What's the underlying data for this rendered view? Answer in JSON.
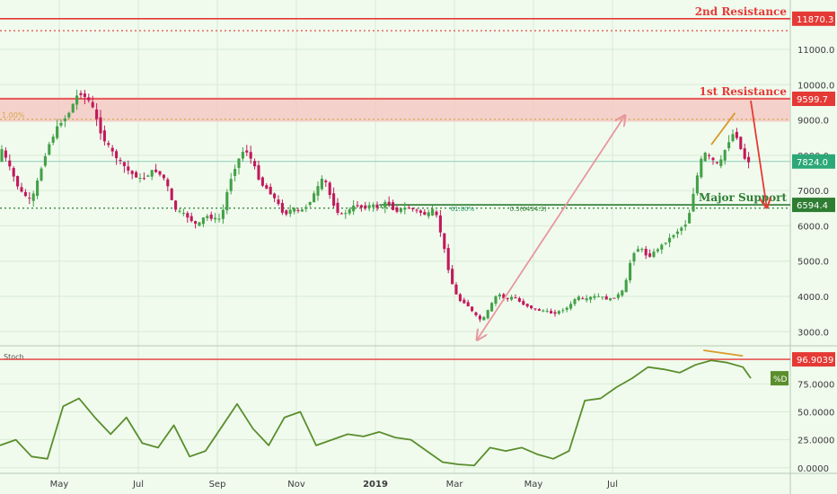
{
  "chart_data": [
    {
      "type": "candlestick",
      "title": "",
      "x_ticks": [
        "May",
        "Jul",
        "Sep",
        "Nov",
        "2019",
        "Mar",
        "May",
        "Jul"
      ],
      "y_ticks": [
        "3000.0",
        "4000.0",
        "5000.0",
        "6000.0",
        "7000.0",
        "8000.0",
        "9000.0",
        "10000.0",
        "11000.0"
      ],
      "ylim": [
        2600,
        12400
      ],
      "grid": true,
      "colors": {
        "up": "#43a047",
        "down": "#c2185b",
        "resistance": "#e53935",
        "support": "#2e7d32",
        "arrow_up": "#e8979e"
      },
      "levels": [
        {
          "name": "2nd Resistance",
          "value": 11870.3,
          "label": "11870.3",
          "color": "#e53935"
        },
        {
          "name": "1st Resistance",
          "value": 9599.7,
          "label": "9599.7",
          "color": "#e53935"
        },
        {
          "name": "Major Support",
          "value": 6594.4,
          "label": "6594.4",
          "color": "#2e7d32"
        }
      ],
      "dotted_levels": [
        11530,
        9020,
        6500
      ],
      "resistance_zone": [
        8950,
        9640
      ],
      "last_price": {
        "value": 7824.0,
        "label": "7824.0"
      },
      "fib_labels": {
        "left": "1.00%",
        "fib618": "61.80%",
        "fib05": "0.5(6494.3)"
      },
      "price_path": [
        [
          0,
          8300
        ],
        [
          5,
          7000
        ],
        [
          8,
          6700
        ],
        [
          12,
          8200
        ],
        [
          15,
          8900
        ],
        [
          17,
          9100
        ],
        [
          20,
          9800
        ],
        [
          23,
          9500
        ],
        [
          26,
          8500
        ],
        [
          29,
          8000
        ],
        [
          33,
          7500
        ],
        [
          36,
          7300
        ],
        [
          39,
          7600
        ],
        [
          42,
          7300
        ],
        [
          44,
          6500
        ],
        [
          47,
          6300
        ],
        [
          50,
          6000
        ],
        [
          52,
          6300
        ],
        [
          54,
          6200
        ],
        [
          56,
          6200
        ],
        [
          58,
          7200
        ],
        [
          60,
          7800
        ],
        [
          62,
          8200
        ],
        [
          64,
          7800
        ],
        [
          66,
          7200
        ],
        [
          68,
          7000
        ],
        [
          70,
          6700
        ],
        [
          72,
          6300
        ],
        [
          74,
          6500
        ],
        [
          76,
          6400
        ],
        [
          78,
          6600
        ],
        [
          80,
          7000
        ],
        [
          82,
          7400
        ],
        [
          84,
          6700
        ],
        [
          86,
          6300
        ],
        [
          88,
          6400
        ],
        [
          90,
          6600
        ],
        [
          92,
          6500
        ],
        [
          94,
          6600
        ],
        [
          96,
          6500
        ],
        [
          98,
          6700
        ],
        [
          100,
          6400
        ],
        [
          102,
          6500
        ],
        [
          104,
          6500
        ],
        [
          106,
          6400
        ],
        [
          108,
          6300
        ],
        [
          110,
          6500
        ],
        [
          112,
          5600
        ],
        [
          114,
          4500
        ],
        [
          116,
          3900
        ],
        [
          118,
          3800
        ],
        [
          120,
          3500
        ],
        [
          122,
          3300
        ],
        [
          124,
          3700
        ],
        [
          126,
          4100
        ],
        [
          128,
          3900
        ],
        [
          130,
          4000
        ],
        [
          132,
          3800
        ],
        [
          134,
          3700
        ],
        [
          136,
          3600
        ],
        [
          138,
          3600
        ],
        [
          140,
          3500
        ],
        [
          142,
          3600
        ],
        [
          144,
          3700
        ],
        [
          146,
          4000
        ],
        [
          148,
          3900
        ],
        [
          150,
          4000
        ],
        [
          152,
          4000
        ],
        [
          154,
          3900
        ],
        [
          156,
          4000
        ],
        [
          158,
          4200
        ],
        [
          160,
          5200
        ],
        [
          162,
          5400
        ],
        [
          164,
          5100
        ],
        [
          166,
          5300
        ],
        [
          168,
          5500
        ],
        [
          170,
          5700
        ],
        [
          172,
          5900
        ],
        [
          174,
          6100
        ],
        [
          176,
          7200
        ],
        [
          178,
          8100
        ],
        [
          180,
          7900
        ],
        [
          182,
          7700
        ],
        [
          184,
          8300
        ],
        [
          186,
          8700
        ],
        [
          188,
          8000
        ],
        [
          189,
          7824
        ]
      ],
      "annotations": {
        "up_arrow": [
          [
            122,
            3100
          ],
          [
            158,
            9100
          ]
        ],
        "down_arrow": [
          [
            190,
            9550
          ],
          [
            194,
            6550
          ]
        ],
        "diverge_line": [
          [
            180,
            8300
          ],
          [
            186,
            9200
          ]
        ]
      }
    },
    {
      "type": "line",
      "title": "Stoch",
      "y_ticks": [
        "0.0000",
        "25.0000",
        "50.0000",
        "75.0000"
      ],
      "ylim": [
        -5,
        105
      ],
      "grid": true,
      "colors": {
        "line": "#5a8e2c",
        "level": "#e53935"
      },
      "level": {
        "value": 96.9039,
        "label": "96.9039"
      },
      "series_tag": "%D",
      "values": [
        [
          0,
          20
        ],
        [
          4,
          25
        ],
        [
          8,
          10
        ],
        [
          12,
          8
        ],
        [
          16,
          55
        ],
        [
          20,
          62
        ],
        [
          24,
          45
        ],
        [
          28,
          30
        ],
        [
          32,
          45
        ],
        [
          36,
          22
        ],
        [
          40,
          18
        ],
        [
          44,
          38
        ],
        [
          48,
          10
        ],
        [
          52,
          15
        ],
        [
          56,
          36
        ],
        [
          60,
          57
        ],
        [
          64,
          35
        ],
        [
          68,
          20
        ],
        [
          72,
          45
        ],
        [
          76,
          50
        ],
        [
          80,
          20
        ],
        [
          84,
          25
        ],
        [
          88,
          30
        ],
        [
          92,
          28
        ],
        [
          96,
          32
        ],
        [
          100,
          27
        ],
        [
          104,
          25
        ],
        [
          108,
          15
        ],
        [
          112,
          5
        ],
        [
          116,
          3
        ],
        [
          120,
          2
        ],
        [
          124,
          18
        ],
        [
          128,
          15
        ],
        [
          132,
          18
        ],
        [
          136,
          12
        ],
        [
          140,
          8
        ],
        [
          144,
          15
        ],
        [
          148,
          60
        ],
        [
          152,
          62
        ],
        [
          156,
          72
        ],
        [
          160,
          80
        ],
        [
          164,
          90
        ],
        [
          168,
          88
        ],
        [
          172,
          85
        ],
        [
          176,
          92
        ],
        [
          180,
          96
        ],
        [
          184,
          94
        ],
        [
          188,
          90
        ],
        [
          190,
          80
        ]
      ],
      "diverge_line": [
        [
          178,
          105
        ],
        [
          188,
          100
        ]
      ]
    }
  ]
}
